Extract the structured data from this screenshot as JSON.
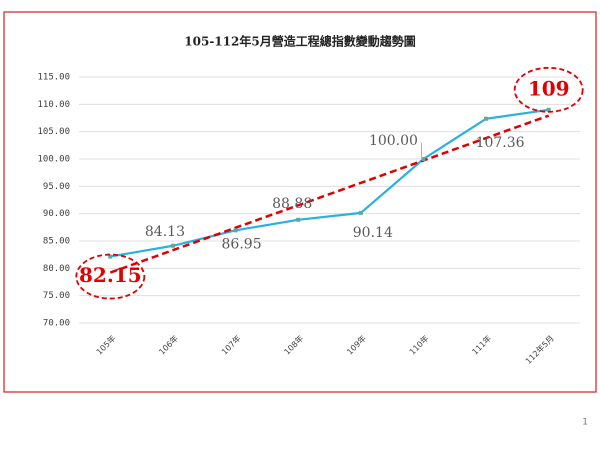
{
  "chart_data": {
    "type": "line",
    "title": "105-112年5月營造工程總指數變動趨勢圖",
    "categories": [
      "105年",
      "106年",
      "107年",
      "108年",
      "109年",
      "110年",
      "111年",
      "112年5月"
    ],
    "series": [
      {
        "name": "營造工程總指數",
        "color": "#29b0e3",
        "values": [
          82.15,
          84.13,
          86.95,
          88.88,
          90.14,
          100.0,
          107.36,
          109
        ],
        "value_labels": [
          "82.15",
          "84.13",
          "86.95",
          "88.88",
          "90.14",
          "100.00",
          "107.36",
          "109"
        ]
      }
    ],
    "ylim": [
      70,
      115
    ],
    "yticks": [
      {
        "value": 70,
        "label": "70.00"
      },
      {
        "value": 75,
        "label": "75.00"
      },
      {
        "value": 80,
        "label": "80.00"
      },
      {
        "value": 85,
        "label": "85.00"
      },
      {
        "value": 90,
        "label": "90.00"
      },
      {
        "value": 95,
        "label": "95.00"
      },
      {
        "value": 100,
        "label": "100.00"
      },
      {
        "value": 105,
        "label": "105.00"
      },
      {
        "value": 110,
        "label": "110.00"
      },
      {
        "value": 115,
        "label": "115.00"
      }
    ],
    "grid": true,
    "trendline": true,
    "trendline_color": "#e00000",
    "border_color": "#d02020"
  },
  "page_number": "1"
}
